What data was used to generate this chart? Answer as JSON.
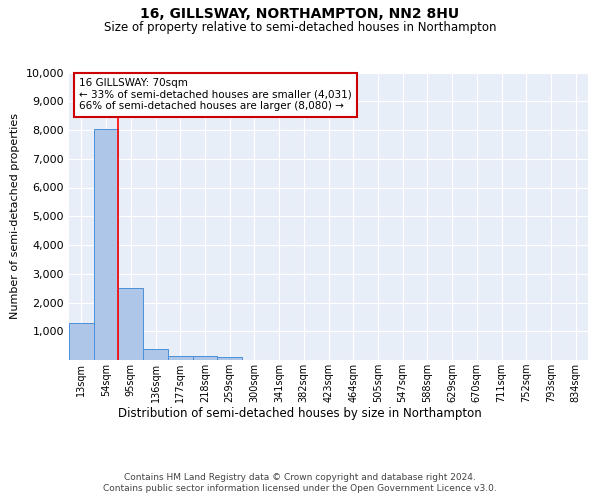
{
  "title": "16, GILLSWAY, NORTHAMPTON, NN2 8HU",
  "subtitle": "Size of property relative to semi-detached houses in Northampton",
  "xlabel_bottom": "Distribution of semi-detached houses by size in Northampton",
  "ylabel": "Number of semi-detached properties",
  "footer_line1": "Contains HM Land Registry data © Crown copyright and database right 2024.",
  "footer_line2": "Contains public sector information licensed under the Open Government Licence v3.0.",
  "categories": [
    "13sqm",
    "54sqm",
    "95sqm",
    "136sqm",
    "177sqm",
    "218sqm",
    "259sqm",
    "300sqm",
    "341sqm",
    "382sqm",
    "423sqm",
    "464sqm",
    "505sqm",
    "547sqm",
    "588sqm",
    "629sqm",
    "670sqm",
    "711sqm",
    "752sqm",
    "793sqm",
    "834sqm"
  ],
  "bar_values": [
    1300,
    8050,
    2500,
    390,
    140,
    130,
    110,
    0,
    0,
    0,
    0,
    0,
    0,
    0,
    0,
    0,
    0,
    0,
    0,
    0,
    0
  ],
  "bar_color": "#aec6e8",
  "bar_edge_color": "#4a90d9",
  "background_color": "#e8eef8",
  "grid_color": "#ffffff",
  "annotation_line1": "16 GILLSWAY: 70sqm",
  "annotation_line2": "← 33% of semi-detached houses are smaller (4,031)",
  "annotation_line3": "66% of semi-detached houses are larger (8,080) →",
  "annotation_box_color": "#ffffff",
  "annotation_box_edge": "#cc0000",
  "red_line_x": 1.5,
  "ylim": [
    0,
    10000
  ],
  "yticks": [
    0,
    1000,
    2000,
    3000,
    4000,
    5000,
    6000,
    7000,
    8000,
    9000,
    10000
  ]
}
